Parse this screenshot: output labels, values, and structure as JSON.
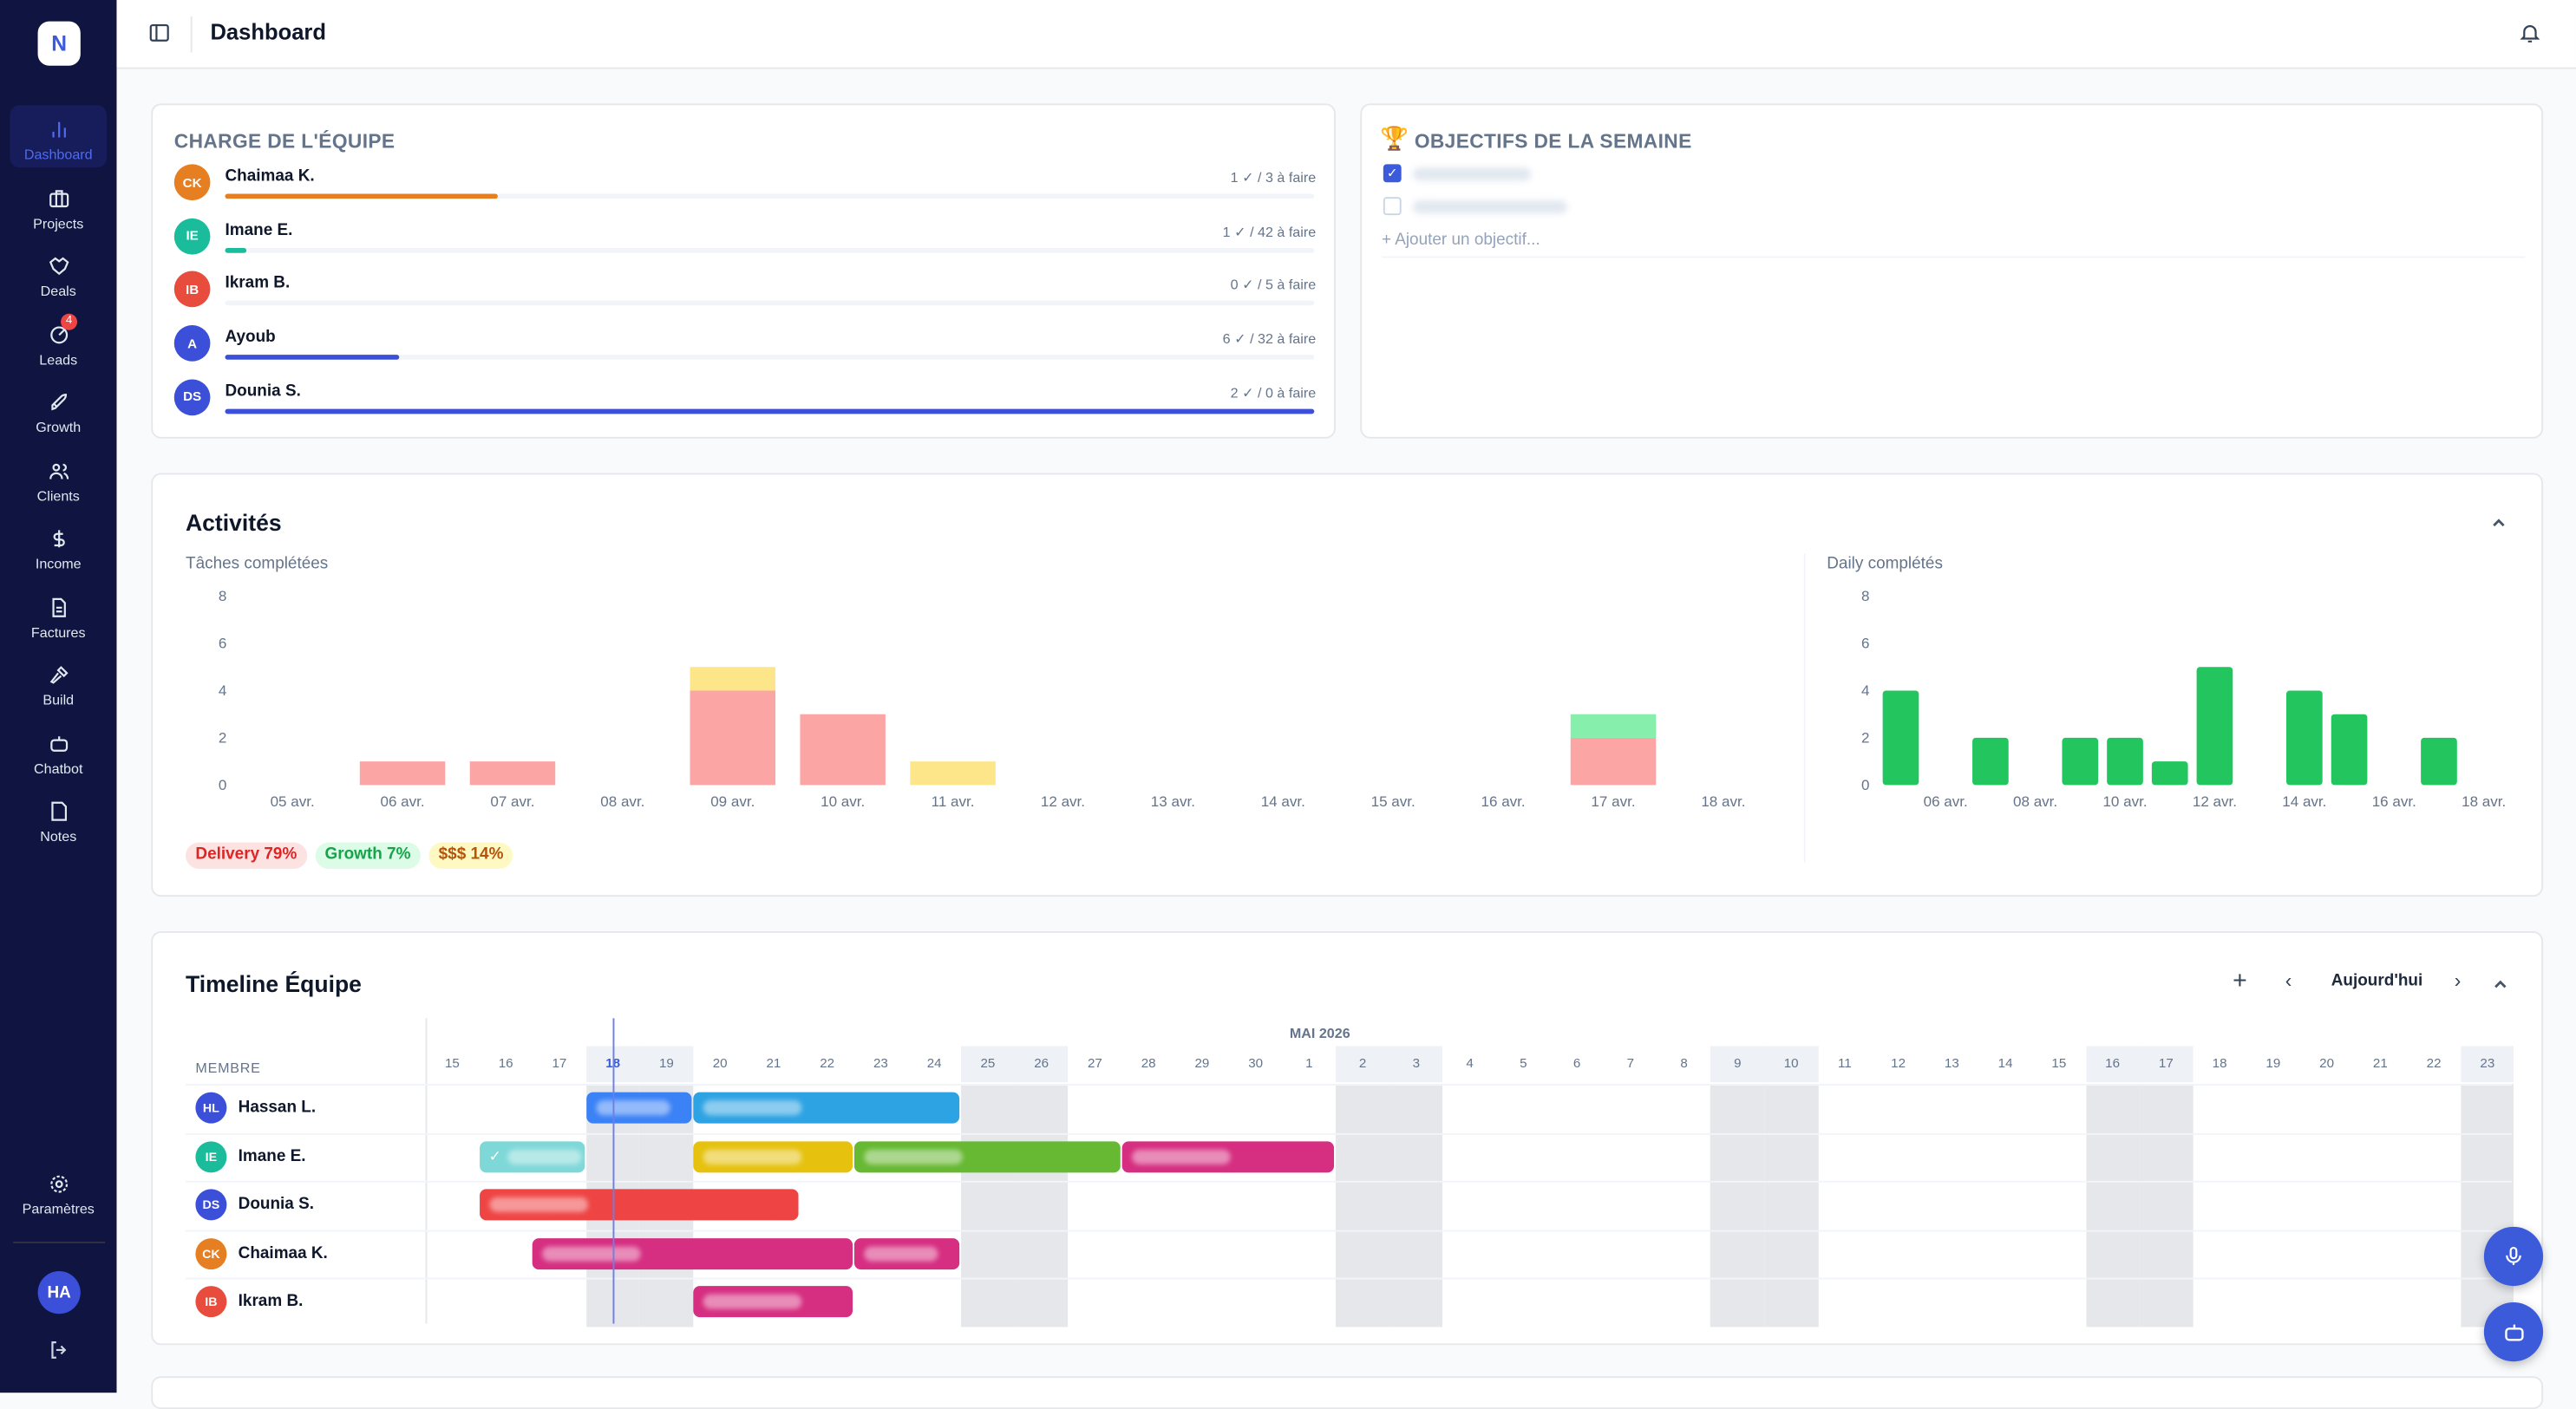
{
  "sidebar": {
    "logo": "N",
    "items": [
      {
        "label": "Dashboard",
        "icon": "bar-chart-icon",
        "active": true
      },
      {
        "label": "Projects",
        "icon": "briefcase-icon"
      },
      {
        "label": "Deals",
        "icon": "handshake-icon"
      },
      {
        "label": "Leads",
        "icon": "target-icon",
        "badge": "4"
      },
      {
        "label": "Growth",
        "icon": "rocket-icon"
      },
      {
        "label": "Clients",
        "icon": "users-icon"
      },
      {
        "label": "Income",
        "icon": "dollar-icon"
      },
      {
        "label": "Factures",
        "icon": "file-icon"
      },
      {
        "label": "Build",
        "icon": "hammer-icon"
      },
      {
        "label": "Chatbot",
        "icon": "bot-icon"
      },
      {
        "label": "Notes",
        "icon": "note-icon"
      }
    ],
    "settings": "Paramètres",
    "user_initials": "HA"
  },
  "header": {
    "title": "Dashboard"
  },
  "team_load": {
    "title": "CHARGE DE L'ÉQUIPE",
    "members": [
      {
        "initials": "CK",
        "name": "Chaimaa K.",
        "stats": "1 ✓ / 3 à faire",
        "progress": 25,
        "color": "#e67e22"
      },
      {
        "initials": "IE",
        "name": "Imane E.",
        "stats": "1 ✓ / 42 à faire",
        "progress": 2,
        "color": "#1abc9c"
      },
      {
        "initials": "IB",
        "name": "Ikram B.",
        "stats": "0 ✓ / 5 à faire",
        "progress": 0,
        "color": "#e74c3c"
      },
      {
        "initials": "A",
        "name": "Ayoub",
        "stats": "6 ✓ / 32 à faire",
        "progress": 16,
        "color": "#3b4fd8"
      },
      {
        "initials": "DS",
        "name": "Dounia S.",
        "stats": "2 ✓ / 0 à faire",
        "progress": 100,
        "color": "#3b4fd8"
      }
    ]
  },
  "objectives": {
    "title": "OBJECTIFS DE LA SEMAINE",
    "items": [
      {
        "checked": true
      },
      {
        "checked": false
      }
    ],
    "add_placeholder": "+ Ajouter un objectif..."
  },
  "activities": {
    "title": "Activités",
    "legend": [
      {
        "label": "Delivery 79%",
        "bg": "#fde2e2",
        "fg": "#dc2626"
      },
      {
        "label": "Growth 7%",
        "bg": "#dcfce7",
        "fg": "#16a34a"
      },
      {
        "label": "$$$ 14%",
        "bg": "#fef9c3",
        "fg": "#b45309"
      }
    ]
  },
  "chart_data": [
    {
      "type": "bar",
      "stacked": true,
      "title": "Tâches complétées",
      "categories": [
        "05 avr.",
        "06 avr.",
        "07 avr.",
        "08 avr.",
        "09 avr.",
        "10 avr.",
        "11 avr.",
        "12 avr.",
        "13 avr.",
        "14 avr.",
        "15 avr.",
        "16 avr.",
        "17 avr.",
        "18 avr."
      ],
      "series": [
        {
          "name": "Delivery",
          "color": "#fca5a5",
          "values": [
            0,
            1,
            1,
            0,
            4,
            3,
            0,
            0,
            0,
            0,
            0,
            0,
            2,
            0
          ]
        },
        {
          "name": "Growth",
          "color": "#86efac",
          "values": [
            0,
            0,
            0,
            0,
            0,
            0,
            0,
            0,
            0,
            0,
            0,
            0,
            1,
            0
          ]
        },
        {
          "name": "$$$",
          "color": "#fde68a",
          "values": [
            0,
            0,
            0,
            0,
            1,
            0,
            1,
            0,
            0,
            0,
            0,
            0,
            0,
            0
          ]
        }
      ],
      "yticks": [
        0,
        2,
        4,
        6,
        8
      ],
      "ylim": [
        0,
        8
      ],
      "grid": false
    },
    {
      "type": "bar",
      "title": "Daily complétés",
      "categories": [
        "05 avr.",
        "06 avr.",
        "07 avr.",
        "08 avr.",
        "09 avr.",
        "10 avr.",
        "11 avr.",
        "12 avr.",
        "13 avr.",
        "14 avr.",
        "15 avr.",
        "16 avr.",
        "17 avr.",
        "18 avr."
      ],
      "xtick_labels": [
        "06 avr.",
        "08 avr.",
        "10 avr.",
        "12 avr.",
        "14 avr.",
        "16 avr.",
        "18 avr."
      ],
      "values": [
        4,
        0,
        2,
        0,
        2,
        2,
        1,
        5,
        0,
        4,
        3,
        0,
        2,
        0
      ],
      "color": "#22c55e",
      "yticks": [
        0,
        2,
        4,
        6,
        8
      ],
      "ylim": [
        0,
        8
      ],
      "grid": false
    }
  ],
  "timeline": {
    "title": "Timeline Équipe",
    "today_button": "Aujourd'hui",
    "member_header": "MEMBRE",
    "month_label": "MAI 2026",
    "days": [
      "15",
      "16",
      "17",
      "18",
      "19",
      "20",
      "21",
      "22",
      "23",
      "24",
      "25",
      "26",
      "27",
      "28",
      "29",
      "30",
      "1",
      "2",
      "3",
      "4",
      "5",
      "6",
      "7",
      "8",
      "9",
      "10",
      "11",
      "12",
      "13",
      "14",
      "15",
      "16",
      "17",
      "18",
      "19",
      "20",
      "21",
      "22",
      "23"
    ],
    "weekend_indices": [
      3,
      4,
      10,
      11,
      17,
      18,
      24,
      25,
      31,
      32,
      38
    ],
    "today_index": 3,
    "members": [
      {
        "initials": "HL",
        "name": "Hassan L.",
        "color": "#3b4fd8",
        "bars": [
          {
            "start": 3,
            "end": 4,
            "color": "#3b82f6"
          },
          {
            "start": 5,
            "end": 9,
            "color": "#2ea3e3"
          }
        ]
      },
      {
        "initials": "IE",
        "name": "Imane E.",
        "color": "#1abc9c",
        "bars": [
          {
            "start": 1,
            "end": 2,
            "color": "#7fd8d8",
            "done": "✓"
          },
          {
            "start": 5,
            "end": 7,
            "color": "#e6c20f"
          },
          {
            "start": 8,
            "end": 12,
            "color": "#67b832"
          },
          {
            "start": 13,
            "end": 16,
            "color": "#d62e80"
          }
        ]
      },
      {
        "initials": "DS",
        "name": "Dounia S.",
        "color": "#3b4fd8",
        "bars": [
          {
            "start": 1,
            "end": 6,
            "color": "#ef4444"
          }
        ]
      },
      {
        "initials": "CK",
        "name": "Chaimaa K.",
        "color": "#e67e22",
        "bars": [
          {
            "start": 2,
            "end": 7,
            "color": "#d62e80"
          },
          {
            "start": 8,
            "end": 9,
            "color": "#d62e80"
          }
        ]
      },
      {
        "initials": "IB",
        "name": "Ikram B.",
        "color": "#e74c3c",
        "bars": [
          {
            "start": 5,
            "end": 7,
            "color": "#d62e80"
          }
        ]
      }
    ]
  }
}
